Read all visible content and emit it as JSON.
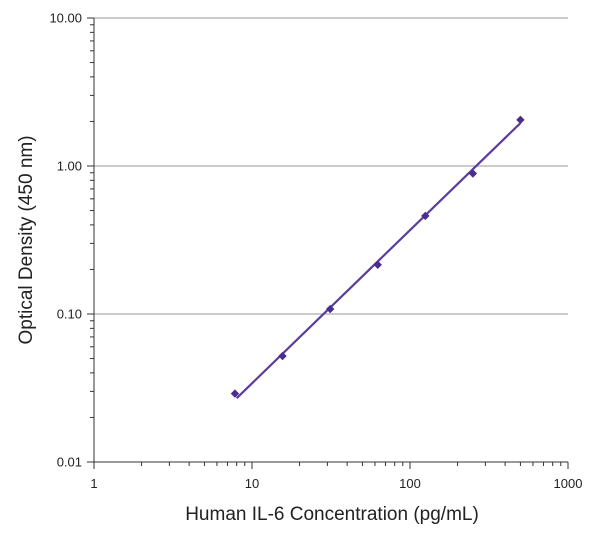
{
  "chart_data": {
    "type": "scatter",
    "title": "",
    "xlabel": "Human IL-6 Concentration (pg/mL)",
    "ylabel": "Optical Density (450 nm)",
    "x_scale": "log",
    "y_scale": "log",
    "xlim": [
      1,
      1000
    ],
    "ylim": [
      0.01,
      10
    ],
    "x_ticks": [
      1,
      10,
      100,
      1000
    ],
    "x_tick_labels": [
      "1",
      "10",
      "100",
      "1000"
    ],
    "y_ticks": [
      0.01,
      0.1,
      1,
      10
    ],
    "y_tick_labels": [
      "0.01",
      "0.10",
      "1.00",
      "10.00"
    ],
    "grid": "horizontal major",
    "legend": "none",
    "series": [
      {
        "points": [
          {
            "x": 7.8,
            "y": 0.029
          },
          {
            "x": 15.6,
            "y": 0.052
          },
          {
            "x": 31.25,
            "y": 0.108
          },
          {
            "x": 62.5,
            "y": 0.215
          },
          {
            "x": 125,
            "y": 0.46
          },
          {
            "x": 250,
            "y": 0.89
          },
          {
            "x": 500,
            "y": 2.05
          }
        ],
        "fit": {
          "x": [
            8,
            500
          ],
          "y": [
            0.027,
            1.95
          ]
        }
      }
    ],
    "colors": {
      "series": "#4b2d8f",
      "fit": "#5a3d9c",
      "grid": "#999999",
      "axis": "#333333"
    }
  }
}
